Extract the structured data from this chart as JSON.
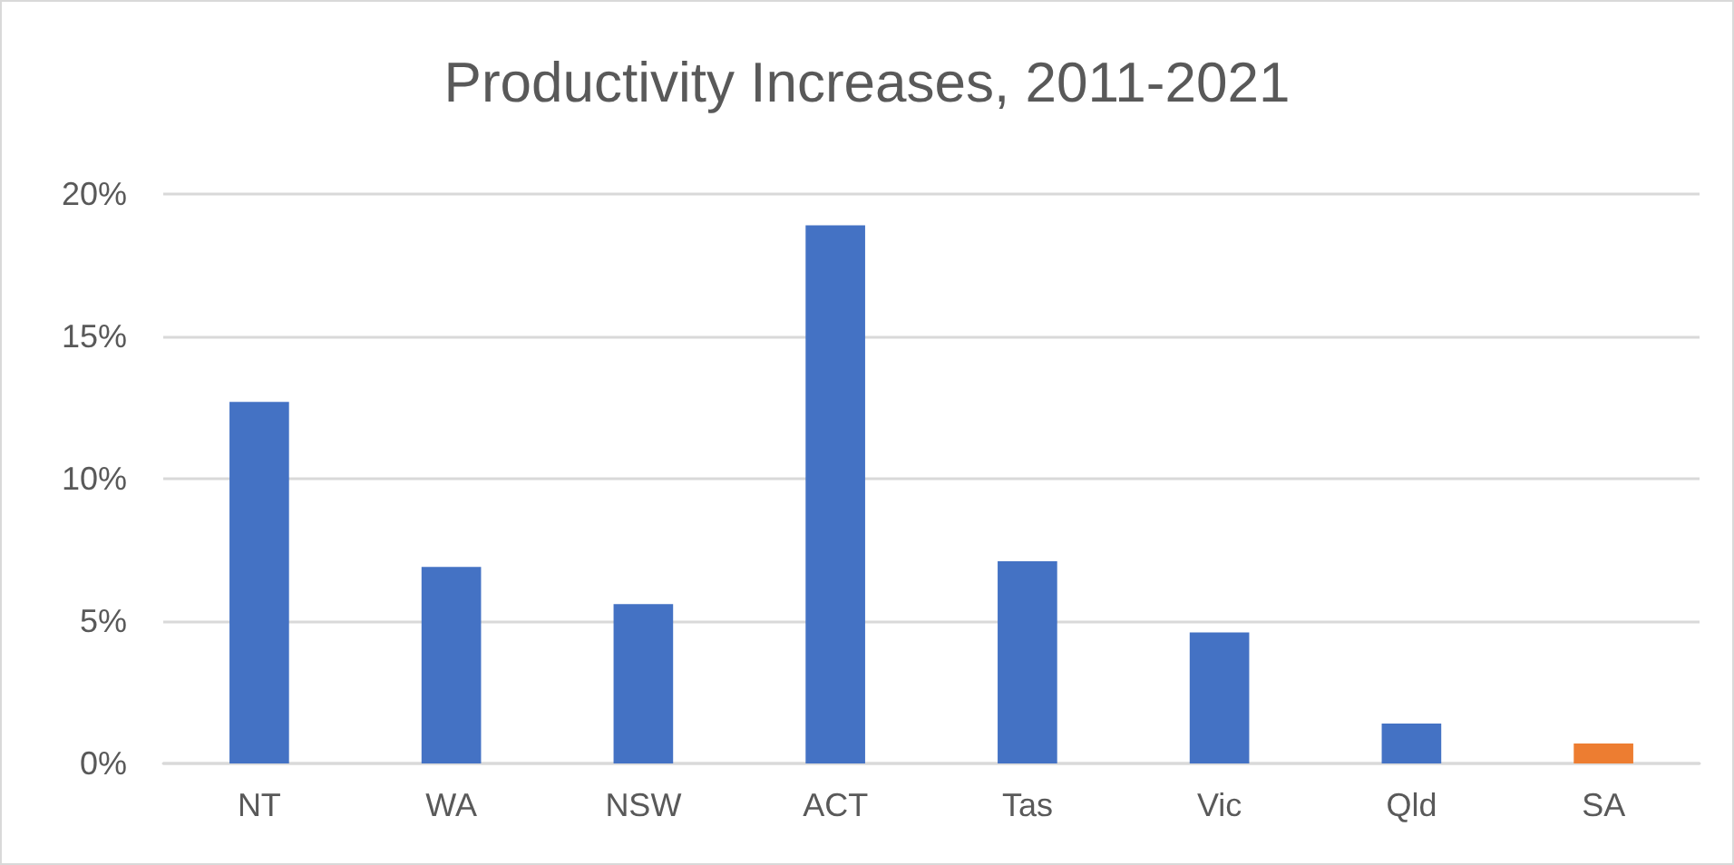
{
  "chart_data": {
    "type": "bar",
    "title": "Productivity Increases, 2011-2021",
    "categories": [
      "NT",
      "WA",
      "NSW",
      "ACT",
      "Tas",
      "Vic",
      "Qld",
      "SA"
    ],
    "values": [
      12.7,
      6.9,
      5.6,
      18.9,
      7.1,
      4.6,
      1.4,
      0.7
    ],
    "colors": [
      "#4472c4",
      "#4472c4",
      "#4472c4",
      "#4472c4",
      "#4472c4",
      "#4472c4",
      "#4472c4",
      "#ed7d31"
    ],
    "ylim": [
      0,
      20
    ],
    "yticks": [
      {
        "value": 0,
        "label": "0%"
      },
      {
        "value": 5,
        "label": "5%"
      },
      {
        "value": 10,
        "label": "10%"
      },
      {
        "value": 15,
        "label": "15%"
      },
      {
        "value": 20,
        "label": "20%"
      }
    ],
    "grid": "y"
  }
}
